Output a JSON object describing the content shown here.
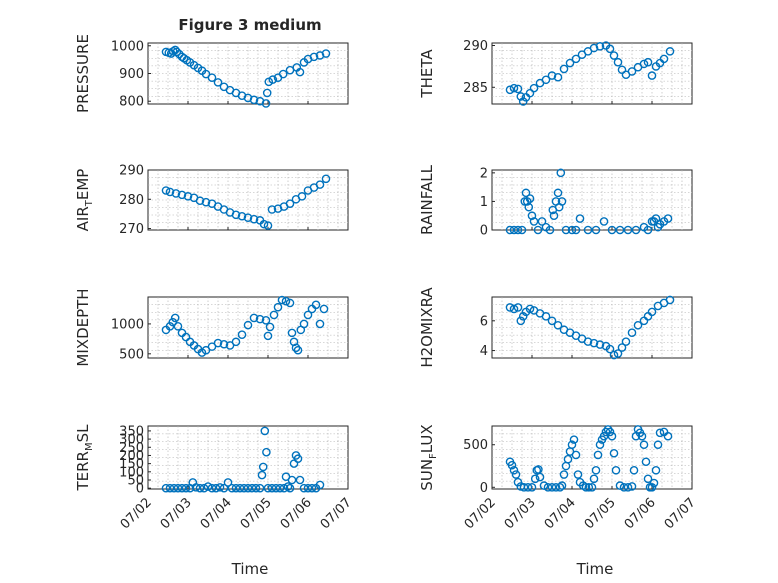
{
  "figure_title": "Figure 3 medium",
  "x_axis_label": "Time",
  "x_tick_labels": [
    "07/02",
    "07/03",
    "07/04",
    "07/05",
    "07/06",
    "07/07"
  ],
  "marker_color": "#0072bd",
  "chart_data": [
    {
      "type": "scatter",
      "name": "pressure",
      "ylabel": "PRESSURE",
      "ylim": [
        790,
        1010
      ],
      "yticks": [
        800,
        900,
        1000
      ],
      "grid": true,
      "x": [
        0.45,
        0.52,
        0.58,
        0.63,
        0.68,
        0.72,
        0.78,
        0.85,
        0.9,
        0.97,
        1.05,
        1.15,
        1.25,
        1.35,
        1.45,
        1.6,
        1.75,
        1.9,
        2.05,
        2.2,
        2.35,
        2.5,
        2.65,
        2.8,
        2.95,
        2.98,
        3.02,
        3.12,
        3.25,
        3.38,
        3.55,
        3.72,
        3.8,
        3.9,
        4.0,
        4.15,
        4.3,
        4.45
      ],
      "y": [
        978,
        975,
        972,
        980,
        985,
        978,
        970,
        960,
        955,
        948,
        940,
        930,
        920,
        910,
        898,
        885,
        868,
        852,
        840,
        830,
        820,
        812,
        805,
        800,
        792,
        830,
        870,
        878,
        885,
        898,
        912,
        922,
        905,
        940,
        952,
        960,
        965,
        972
      ]
    },
    {
      "type": "scatter",
      "name": "theta",
      "ylabel": "THETA",
      "ylim": [
        283,
        290.3
      ],
      "yticks": [
        285,
        290
      ],
      "grid": true,
      "x": [
        0.45,
        0.55,
        0.65,
        0.72,
        0.78,
        0.85,
        0.95,
        1.05,
        1.2,
        1.35,
        1.5,
        1.65,
        1.8,
        1.95,
        2.1,
        2.25,
        2.4,
        2.55,
        2.7,
        2.85,
        2.95,
        3.05,
        3.15,
        3.25,
        3.35,
        3.5,
        3.65,
        3.8,
        3.9,
        4.0,
        4.1,
        4.2,
        4.3,
        4.45
      ],
      "y": [
        284.7,
        284.9,
        284.8,
        283.9,
        283.3,
        283.8,
        284.3,
        284.9,
        285.5,
        285.9,
        286.4,
        286.2,
        287.2,
        287.9,
        288.4,
        288.9,
        289.3,
        289.7,
        289.9,
        290.0,
        289.6,
        288.8,
        288.0,
        287.1,
        286.5,
        286.9,
        287.4,
        287.8,
        288.0,
        286.4,
        287.5,
        287.9,
        288.4,
        289.3
      ]
    },
    {
      "type": "scatter",
      "name": "air_temp",
      "ylabel": "AIR_TEMP",
      "ylim": [
        269.5,
        290
      ],
      "yticks": [
        270,
        280,
        290
      ],
      "grid": true,
      "x": [
        0.45,
        0.55,
        0.7,
        0.85,
        1.0,
        1.15,
        1.3,
        1.45,
        1.6,
        1.75,
        1.9,
        2.05,
        2.2,
        2.35,
        2.5,
        2.65,
        2.8,
        2.9,
        3.0,
        3.1,
        3.25,
        3.4,
        3.55,
        3.7,
        3.85,
        4.0,
        4.15,
        4.3,
        4.45
      ],
      "y": [
        283,
        282.5,
        282,
        281.5,
        281,
        280.5,
        279.5,
        279,
        278.5,
        277.5,
        276.5,
        275.5,
        274.7,
        274.2,
        273.7,
        273.2,
        272.8,
        271.5,
        271,
        276.5,
        276.8,
        277.5,
        278.5,
        280,
        281,
        283,
        284,
        285,
        287
      ]
    },
    {
      "type": "scatter",
      "name": "rainfall",
      "ylabel": "RAINFALL",
      "ylim": [
        0,
        2.1
      ],
      "yticks": [
        0,
        1,
        2
      ],
      "grid": true,
      "x": [
        0.45,
        0.55,
        0.65,
        0.75,
        0.82,
        0.85,
        0.88,
        0.92,
        0.95,
        1.0,
        1.05,
        1.15,
        1.25,
        1.35,
        1.45,
        1.52,
        1.55,
        1.6,
        1.65,
        1.68,
        1.72,
        1.75,
        1.85,
        2.0,
        2.1,
        2.2,
        2.4,
        2.6,
        2.8,
        3.0,
        3.2,
        3.4,
        3.6,
        3.8,
        3.9,
        4.0,
        4.05,
        4.1,
        4.15,
        4.2,
        4.3,
        4.4
      ],
      "y": [
        0,
        0,
        0,
        0,
        1.0,
        1.3,
        1.0,
        0.8,
        1.1,
        0.5,
        0.3,
        0,
        0.3,
        0.1,
        0,
        0.7,
        0.5,
        1.0,
        1.3,
        0.8,
        2.0,
        1.0,
        0,
        0,
        0,
        0.4,
        0,
        0,
        0.3,
        0,
        0,
        0,
        0,
        0.1,
        0,
        0.3,
        0.3,
        0.4,
        0.1,
        0.2,
        0.3,
        0.4
      ]
    },
    {
      "type": "scatter",
      "name": "mixdepth",
      "ylabel": "MIXDEPTH",
      "ylim": [
        430,
        1450
      ],
      "yticks": [
        500,
        1000
      ],
      "grid": true,
      "x": [
        0.45,
        0.55,
        0.62,
        0.68,
        0.75,
        0.85,
        0.95,
        1.05,
        1.15,
        1.25,
        1.35,
        1.45,
        1.6,
        1.75,
        1.9,
        2.05,
        2.2,
        2.35,
        2.5,
        2.65,
        2.8,
        2.95,
        3.0,
        3.05,
        3.15,
        3.25,
        3.35,
        3.45,
        3.55,
        3.6,
        3.65,
        3.7,
        3.75,
        3.82,
        3.9,
        4.0,
        4.1,
        4.2,
        4.3,
        4.4
      ],
      "y": [
        900,
        960,
        1030,
        1100,
        960,
        850,
        780,
        700,
        640,
        580,
        520,
        560,
        620,
        680,
        660,
        640,
        700,
        820,
        980,
        1100,
        1080,
        1060,
        800,
        950,
        1150,
        1280,
        1400,
        1380,
        1350,
        850,
        700,
        600,
        560,
        900,
        1000,
        1150,
        1250,
        1320,
        1000,
        1250
      ]
    },
    {
      "type": "scatter",
      "name": "h2omixra",
      "ylabel": "H2OMIXRA",
      "ylim": [
        3.5,
        7.6
      ],
      "yticks": [
        4,
        6
      ],
      "grid": true,
      "x": [
        0.45,
        0.55,
        0.65,
        0.72,
        0.78,
        0.85,
        0.95,
        1.05,
        1.2,
        1.35,
        1.5,
        1.65,
        1.8,
        1.95,
        2.1,
        2.25,
        2.4,
        2.55,
        2.7,
        2.85,
        2.95,
        3.05,
        3.15,
        3.25,
        3.35,
        3.5,
        3.65,
        3.8,
        3.9,
        4.0,
        4.15,
        4.3,
        4.45
      ],
      "y": [
        6.9,
        6.8,
        6.9,
        6.0,
        6.3,
        6.6,
        6.8,
        6.7,
        6.5,
        6.3,
        6.0,
        5.7,
        5.4,
        5.2,
        5.0,
        4.8,
        4.6,
        4.5,
        4.4,
        4.3,
        4.1,
        3.7,
        3.8,
        4.2,
        4.6,
        5.2,
        5.7,
        6.0,
        6.3,
        6.6,
        7.0,
        7.2,
        7.4
      ]
    },
    {
      "type": "scatter",
      "name": "terr_msl",
      "ylabel": "TERR_MSL",
      "ylim": [
        -5,
        380
      ],
      "yticks": [
        0,
        50,
        100,
        150,
        200,
        250,
        300,
        350
      ],
      "grid": true,
      "x": [
        0.45,
        0.55,
        0.65,
        0.75,
        0.85,
        0.95,
        1.05,
        1.12,
        1.2,
        1.3,
        1.4,
        1.5,
        1.6,
        1.7,
        1.8,
        1.9,
        2.0,
        2.1,
        2.2,
        2.3,
        2.4,
        2.5,
        2.6,
        2.7,
        2.8,
        2.85,
        2.88,
        2.92,
        2.96,
        3.0,
        3.1,
        3.2,
        3.3,
        3.4,
        3.45,
        3.5,
        3.55,
        3.6,
        3.65,
        3.7,
        3.75,
        3.8,
        3.9,
        4.0,
        4.1,
        4.2,
        4.3
      ],
      "y": [
        0,
        0,
        0,
        0,
        0,
        0,
        0,
        35,
        5,
        0,
        0,
        10,
        0,
        0,
        5,
        0,
        35,
        0,
        0,
        0,
        0,
        0,
        0,
        0,
        0,
        80,
        130,
        350,
        220,
        0,
        0,
        0,
        0,
        0,
        70,
        10,
        0,
        50,
        150,
        200,
        180,
        50,
        0,
        0,
        0,
        0,
        20
      ]
    },
    {
      "type": "scatter",
      "name": "sun_flux",
      "ylabel": "SUN_FLUX",
      "ylim": [
        -20,
        720
      ],
      "yticks": [
        0,
        500
      ],
      "grid": true,
      "x": [
        0.45,
        0.5,
        0.55,
        0.6,
        0.65,
        0.72,
        0.8,
        0.9,
        1.0,
        1.08,
        1.12,
        1.16,
        1.2,
        1.3,
        1.4,
        1.5,
        1.6,
        1.7,
        1.75,
        1.8,
        1.85,
        1.9,
        1.95,
        2.0,
        2.05,
        2.1,
        2.15,
        2.2,
        2.28,
        2.35,
        2.42,
        2.5,
        2.55,
        2.6,
        2.65,
        2.7,
        2.75,
        2.8,
        2.85,
        2.9,
        2.95,
        3.0,
        3.05,
        3.1,
        3.2,
        3.3,
        3.4,
        3.5,
        3.55,
        3.6,
        3.65,
        3.7,
        3.75,
        3.8,
        3.85,
        3.9,
        3.95,
        4.0,
        4.05,
        4.1,
        4.15,
        4.2,
        4.3,
        4.4
      ],
      "y": [
        300,
        260,
        200,
        150,
        60,
        10,
        0,
        0,
        0,
        100,
        200,
        210,
        120,
        20,
        0,
        0,
        0,
        0,
        20,
        150,
        250,
        330,
        420,
        500,
        560,
        380,
        150,
        60,
        20,
        0,
        0,
        0,
        100,
        200,
        380,
        500,
        560,
        600,
        650,
        680,
        650,
        600,
        400,
        200,
        20,
        0,
        0,
        10,
        200,
        600,
        680,
        640,
        600,
        500,
        300,
        100,
        0,
        0,
        50,
        200,
        500,
        640,
        650,
        600
      ]
    }
  ]
}
